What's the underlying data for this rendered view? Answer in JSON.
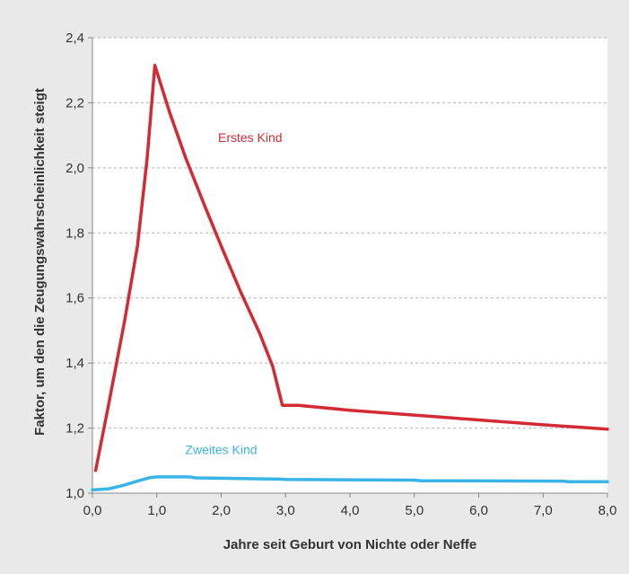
{
  "chart_data": {
    "type": "line",
    "title": "",
    "xlabel": "Jahre seit Geburt von Nichte oder Neffe",
    "ylabel": "Faktor, um den die Zeugungswahrscheinlichkeit steigt",
    "xlim": [
      0,
      8
    ],
    "ylim": [
      1.0,
      2.4
    ],
    "x_ticks": [
      "0,0",
      "1,0",
      "2,0",
      "3,0",
      "4,0",
      "5,0",
      "6,0",
      "7,0",
      "8,0"
    ],
    "y_ticks": [
      "1,0",
      "1,2",
      "1,4",
      "1,6",
      "1,8",
      "2,0",
      "2,2",
      "2,4"
    ],
    "grid": "horizontal dashed",
    "background": "#e9e9e9",
    "series": [
      {
        "name": "Erstes Kind",
        "color": "#d42a33",
        "points": [
          [
            0.05,
            1.07
          ],
          [
            0.25,
            1.27
          ],
          [
            0.5,
            1.53
          ],
          [
            0.7,
            1.76
          ],
          [
            0.85,
            2.03
          ],
          [
            0.97,
            2.315
          ],
          [
            1.2,
            2.17
          ],
          [
            1.45,
            2.03
          ],
          [
            1.75,
            1.88
          ],
          [
            2.0,
            1.76
          ],
          [
            2.3,
            1.62
          ],
          [
            2.6,
            1.49
          ],
          [
            2.8,
            1.39
          ],
          [
            2.95,
            1.27
          ],
          [
            3.2,
            1.27
          ],
          [
            4.0,
            1.255
          ],
          [
            5.0,
            1.24
          ],
          [
            6.0,
            1.225
          ],
          [
            7.0,
            1.21
          ],
          [
            8.0,
            1.197
          ]
        ]
      },
      {
        "name": "Zweites Kind",
        "color": "#3ab4e6",
        "points": [
          [
            0.0,
            1.01
          ],
          [
            0.25,
            1.013
          ],
          [
            0.5,
            1.025
          ],
          [
            0.7,
            1.037
          ],
          [
            0.9,
            1.048
          ],
          [
            1.0,
            1.05
          ],
          [
            1.5,
            1.05
          ],
          [
            1.6,
            1.047
          ],
          [
            2.3,
            1.045
          ],
          [
            2.9,
            1.043
          ],
          [
            3.0,
            1.042
          ],
          [
            5.0,
            1.04
          ],
          [
            5.1,
            1.038
          ],
          [
            7.3,
            1.037
          ],
          [
            7.4,
            1.035
          ],
          [
            8.0,
            1.035
          ]
        ]
      }
    ],
    "annotations": [
      {
        "text": "Erstes Kind",
        "x": 2.45,
        "y": 2.08,
        "color": "#d42a33"
      },
      {
        "text": "Zweites Kind",
        "x": 2.0,
        "y": 1.12,
        "color": "#3ab4e6"
      }
    ]
  }
}
